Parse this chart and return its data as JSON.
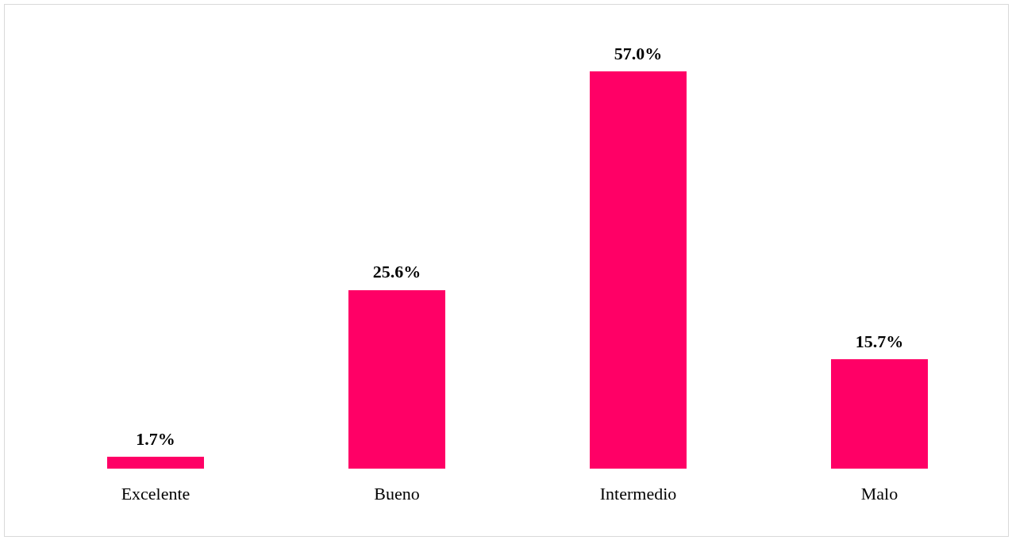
{
  "chart_data": {
    "type": "bar",
    "categories": [
      "Excelente",
      "Bueno",
      "Intermedio",
      "Malo"
    ],
    "values": [
      1.7,
      25.6,
      57.0,
      15.7
    ],
    "value_labels": [
      "1.7%",
      "25.6%",
      "57.0%",
      "15.7%"
    ],
    "color": "#ff0066"
  }
}
